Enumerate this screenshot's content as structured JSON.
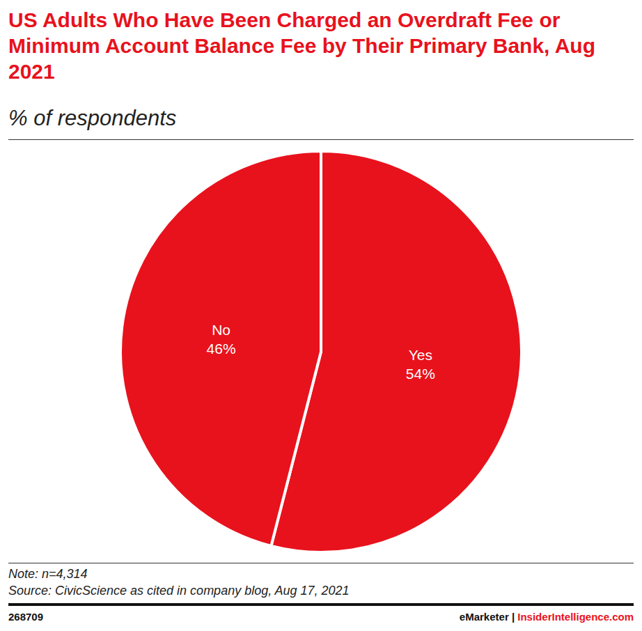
{
  "chart_data": {
    "type": "pie",
    "title": "US Adults Who Have Been Charged an Overdraft Fee or Minimum Account Balance Fee by Their Primary Bank, Aug 2021",
    "subtitle": "% of respondents",
    "categories": [
      "Yes",
      "No"
    ],
    "values": [
      54,
      46
    ],
    "value_labels": [
      "54%",
      "46%"
    ],
    "colors": [
      "#e8121d",
      "#e8121d"
    ],
    "data_labels": true,
    "note": "Note: n=4,314",
    "source": "Source: CivicScience as cited in company blog, Aug 17, 2021",
    "footer": {
      "id": "268709",
      "brand": "eMarketer",
      "separator": "|",
      "site": "InsiderIntelligence.com"
    }
  }
}
